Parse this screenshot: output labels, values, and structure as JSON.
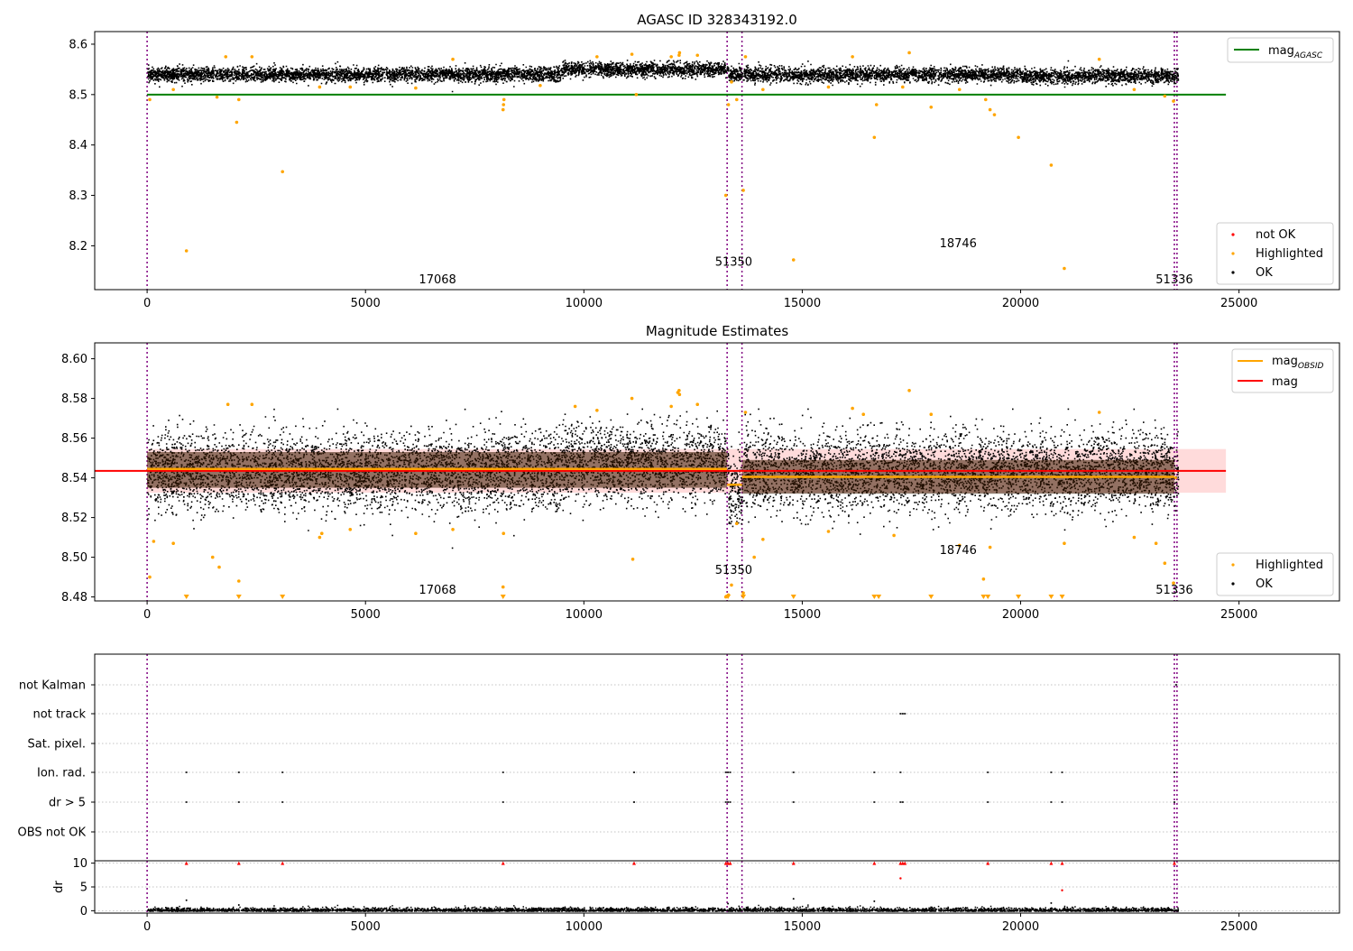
{
  "chart_data": [
    {
      "type": "scatter",
      "title": "AGASC ID 328343192.0",
      "xlabel": "",
      "ylabel": "",
      "xlim": [
        -1200,
        27300
      ],
      "ylim": [
        8.113,
        8.625
      ],
      "xticks": [
        0,
        5000,
        10000,
        15000,
        20000,
        25000
      ],
      "yticks": [
        8.2,
        8.3,
        8.4,
        8.5,
        8.6
      ],
      "ytick_labels": [
        "8.2",
        "8.3",
        "8.4",
        "8.5",
        "8.6"
      ],
      "obs_boundaries": [
        0,
        13280,
        13620,
        23520,
        23580
      ],
      "obsid_labels": [
        {
          "text": "17068",
          "x": 6650,
          "y": 8.133
        },
        {
          "text": "51350",
          "x": 13430,
          "y": 8.168
        },
        {
          "text": "18746",
          "x": 18570,
          "y": 8.204
        },
        {
          "text": "51336",
          "x": 23520,
          "y": 8.133
        }
      ],
      "agasc_mag": {
        "value": 8.5,
        "x_range": [
          0,
          24700
        ],
        "color": "#008000"
      },
      "ok_band": {
        "x": [
          0,
          23600
        ],
        "mean": 8.541,
        "halfwidth": 0.017
      },
      "highlighted": {
        "x": [
          60,
          900,
          600,
          1600,
          1800,
          2050,
          2100,
          2400,
          3100,
          3950,
          4650,
          6150,
          7000,
          8150,
          8160,
          8170,
          9000,
          10300,
          11100,
          11200,
          12000,
          12180,
          12190,
          12600,
          13250,
          13310,
          13380,
          13500,
          13650,
          13700,
          14100,
          14800,
          15600,
          16150,
          16650,
          16700,
          17300,
          17450,
          17950,
          18600,
          19200,
          19300,
          19400,
          19950,
          20700,
          21000,
          21800,
          22600,
          23300,
          23500
        ],
        "y": [
          8.49,
          8.19,
          8.51,
          8.495,
          8.575,
          8.445,
          8.49,
          8.575,
          8.347,
          8.515,
          8.515,
          8.513,
          8.57,
          8.47,
          8.48,
          8.49,
          8.518,
          8.575,
          8.58,
          8.5,
          8.575,
          8.578,
          8.583,
          8.578,
          8.3,
          8.48,
          8.525,
          8.49,
          8.31,
          8.575,
          8.51,
          8.172,
          8.515,
          8.575,
          8.415,
          8.48,
          8.515,
          8.583,
          8.475,
          8.51,
          8.49,
          8.47,
          8.46,
          8.415,
          8.36,
          8.155,
          8.57,
          8.51,
          8.497,
          8.487
        ]
      },
      "legend": {
        "position": "lower-right",
        "entries": [
          "not OK",
          "Highlighted",
          "OK"
        ]
      },
      "legend2": {
        "position": "upper-right",
        "entries": [
          "mag_AGASC"
        ]
      }
    },
    {
      "type": "scatter",
      "title": "Magnitude Estimates",
      "xlabel": "",
      "ylabel": "",
      "xlim": [
        -1200,
        27300
      ],
      "ylim": [
        8.478,
        8.608
      ],
      "xticks": [
        0,
        5000,
        10000,
        15000,
        20000,
        25000
      ],
      "yticks": [
        8.48,
        8.5,
        8.52,
        8.54,
        8.56,
        8.58,
        8.6
      ],
      "ytick_labels": [
        "8.48",
        "8.50",
        "8.52",
        "8.54",
        "8.56",
        "8.58",
        "8.60"
      ],
      "obs_boundaries": [
        0,
        13280,
        13620,
        23520,
        23580
      ],
      "obsid_labels": [
        {
          "text": "17068",
          "x": 6650,
          "y": 8.4835
        },
        {
          "text": "51350",
          "x": 13430,
          "y": 8.4935
        },
        {
          "text": "18746",
          "x": 18570,
          "y": 8.5035
        },
        {
          "text": "51336",
          "x": 23520,
          "y": 8.4835
        }
      ],
      "mag_line": {
        "value": 8.5435,
        "band": [
          8.5325,
          8.5545
        ],
        "x_range": [
          -1200,
          24700
        ],
        "color": "#ff0000"
      },
      "mag_obsid": [
        {
          "x": [
            0,
            13280
          ],
          "y": 8.5445
        },
        {
          "x": [
            13280,
            13620
          ],
          "y": 8.5365
        },
        {
          "x": [
            13620,
            23520
          ],
          "y": 8.5405
        },
        {
          "x": [
            23520,
            23580
          ],
          "y": 8.54
        }
      ],
      "ok_band": {
        "x": [
          0,
          23600
        ],
        "mean": 8.5435,
        "halfwidth": 0.0085
      },
      "highlighted": {
        "x": [
          60,
          150,
          600,
          1500,
          1650,
          1850,
          2100,
          2400,
          3950,
          4000,
          4650,
          6150,
          7000,
          8150,
          8160,
          9800,
          10300,
          11100,
          11120,
          12000,
          12150,
          12180,
          12190,
          12600,
          13250,
          13310,
          13380,
          13500,
          13650,
          13700,
          13900,
          14100,
          15600,
          16150,
          16400,
          17100,
          17450,
          17950,
          18600,
          19150,
          19300,
          21000,
          21800,
          22600,
          23100,
          23300,
          23500
        ],
        "y": [
          8.49,
          8.508,
          8.507,
          8.5,
          8.495,
          8.577,
          8.488,
          8.577,
          8.51,
          8.512,
          8.514,
          8.512,
          8.514,
          8.485,
          8.512,
          8.576,
          8.574,
          8.58,
          8.499,
          8.576,
          8.583,
          8.584,
          8.582,
          8.577,
          8.48,
          8.481,
          8.486,
          8.517,
          8.482,
          8.573,
          8.5,
          8.509,
          8.513,
          8.575,
          8.572,
          8.511,
          8.584,
          8.572,
          8.506,
          8.489,
          8.505,
          8.507,
          8.573,
          8.51,
          8.507,
          8.497,
          8.487
        ]
      },
      "offscale_low": [
        900,
        2100,
        3100,
        8150,
        13300,
        13650,
        14800,
        16650,
        16750,
        17950,
        19150,
        19250,
        19950,
        20700,
        20950
      ],
      "legend": {
        "position": "lower-right",
        "entries": [
          "Highlighted",
          "OK"
        ]
      },
      "legend2": {
        "position": "upper-right",
        "entries": [
          "mag_OBSID",
          "mag"
        ]
      }
    },
    {
      "type": "scatter",
      "title": "",
      "xlim": [
        -1200,
        27300
      ],
      "xticks": [
        0,
        5000,
        10000,
        15000,
        20000,
        25000
      ],
      "flag_rows": [
        "not Kalman",
        "not track",
        "Sat. pixel.",
        "Ion. rad.",
        "dr > 5",
        "OBS not OK"
      ],
      "obs_boundaries": [
        0,
        13280,
        13620,
        23520,
        23580
      ],
      "flags": {
        "not Kalman": [
          23560
        ],
        "not track": [
          17250,
          17300,
          17350
        ],
        "Sat. pixel.": [],
        "Ion. rad.": [
          900,
          2100,
          3100,
          8150,
          11150,
          13250,
          13300,
          13350,
          14800,
          16650,
          17250,
          19250,
          20700,
          20950,
          23520
        ],
        "dr > 5": [
          900,
          2100,
          3100,
          8150,
          11150,
          13250,
          13300,
          13350,
          14800,
          16650,
          17250,
          17300,
          19250,
          20700,
          20950,
          23520
        ],
        "OBS not OK": []
      }
    },
    {
      "type": "scatter",
      "ylabel": "dr",
      "xlim": [
        -1200,
        27300
      ],
      "ylim": [
        -0.5,
        10.5
      ],
      "xticks": [
        0,
        5000,
        10000,
        15000,
        20000,
        25000
      ],
      "yticks": [
        0,
        5,
        10
      ],
      "ytick_labels": [
        "0",
        "5",
        "10"
      ],
      "xtick_labels": [
        "0",
        "5000",
        "10000",
        "15000",
        "20000",
        "25000"
      ],
      "obs_boundaries": [
        0,
        13280,
        13620,
        23520,
        23580
      ],
      "dr_high": {
        "x": [
          900,
          2100,
          3100,
          8150,
          11150,
          13250,
          13300,
          13350,
          14800,
          16650,
          17250,
          17300,
          17350,
          19250,
          20700,
          20950,
          23520
        ],
        "y": [
          10,
          10,
          10,
          10,
          10,
          10,
          10,
          10,
          10,
          10,
          10,
          10,
          10,
          10,
          10,
          10,
          10
        ]
      },
      "dr_mid": {
        "x": [
          900,
          2100,
          13300,
          14800,
          16650,
          17250,
          20700,
          20950
        ],
        "y": [
          2.2,
          1.2,
          1.5,
          2.5,
          2,
          6.8,
          1.6,
          4.3
        ]
      },
      "red_mid": {
        "x": [
          17250,
          20950
        ],
        "y": [
          6.8,
          4.3
        ]
      }
    }
  ],
  "tick_labels": {
    "x": [
      "0",
      "5000",
      "10000",
      "15000",
      "20000",
      "25000"
    ]
  },
  "ticks_top": {
    "p1": [
      "8.2",
      "8.3",
      "8.4",
      "8.5",
      "8.6"
    ]
  },
  "legends": {
    "p1_main": [
      "not OK",
      "Highlighted",
      "OK"
    ],
    "p1_agasc": {
      "base": "mag",
      "sub": "AGASC"
    },
    "p2_main": [
      "Highlighted",
      "OK"
    ],
    "p2_obsid": {
      "base": "mag",
      "sub": "OBSID"
    },
    "p2_mag": "mag"
  },
  "colors": {
    "ok": "#000000",
    "highlighted": "#ffa500",
    "not_ok": "#ff0000",
    "agasc": "#008000",
    "mag": "#ff0000",
    "mag_obsid": "#ffa500",
    "band_ok": "#3a1a00",
    "band_mag": "#ffcccc",
    "obs_boundary": "#800080",
    "grid": "#b0b0b0"
  }
}
